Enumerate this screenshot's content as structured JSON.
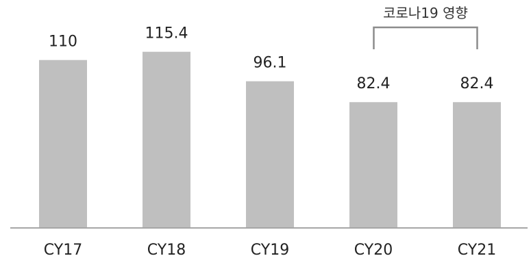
{
  "chart_data": {
    "type": "bar",
    "categories": [
      "CY17",
      "CY18",
      "CY19",
      "CY20",
      "CY21"
    ],
    "values": [
      110,
      115.4,
      96.1,
      82.4,
      82.4
    ],
    "value_labels": [
      "110",
      "115.4",
      "96.1",
      "82.4",
      "82.4"
    ],
    "ylim": [
      0,
      120
    ],
    "grid": false,
    "annotation": {
      "text": "코로나19 영향",
      "categories": [
        "CY20",
        "CY21"
      ]
    }
  }
}
